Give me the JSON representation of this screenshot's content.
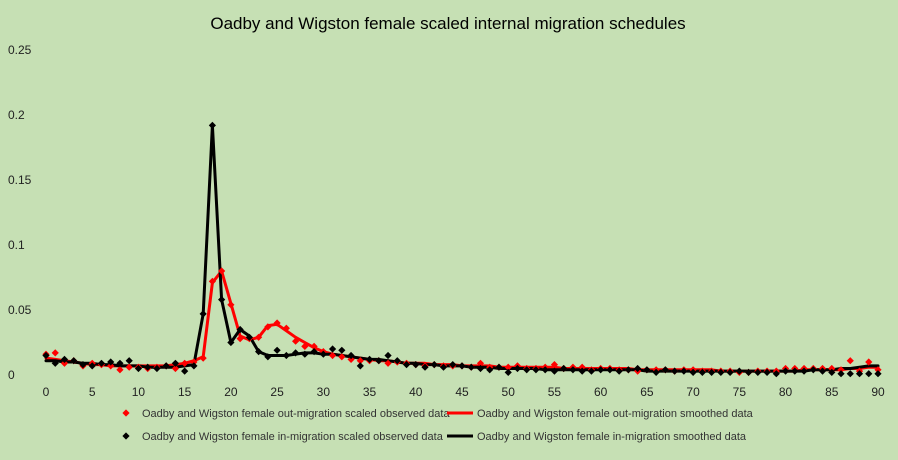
{
  "chart_data": {
    "type": "line",
    "title": "Oadby and Wigston female scaled internal migration schedules",
    "xlabel": "",
    "ylabel": "",
    "xlim": [
      0,
      90
    ],
    "ylim": [
      0,
      0.25
    ],
    "x_ticks": [
      "0",
      "5",
      "10",
      "15",
      "20",
      "25",
      "30",
      "35",
      "40",
      "45",
      "50",
      "55",
      "60",
      "65",
      "70",
      "75",
      "80",
      "85",
      "90"
    ],
    "y_ticks": [
      "0",
      "0.05",
      "0.1",
      "0.15",
      "0.2",
      "0.25"
    ],
    "grid": false,
    "legend_position": "bottom",
    "colors": {
      "background": "#c6e0b4",
      "out": "#ff0000",
      "in": "#000000"
    },
    "series": [
      {
        "name": "Oadby and Wigston female out-migration scaled observed data",
        "kind": "scatter",
        "color": "#ff0000",
        "x": [
          0,
          1,
          2,
          3,
          4,
          5,
          6,
          7,
          8,
          9,
          10,
          11,
          12,
          13,
          14,
          15,
          16,
          17,
          18,
          19,
          20,
          21,
          22,
          23,
          24,
          25,
          26,
          27,
          28,
          29,
          30,
          31,
          32,
          33,
          34,
          35,
          36,
          37,
          38,
          39,
          40,
          41,
          42,
          43,
          44,
          45,
          46,
          47,
          48,
          49,
          50,
          51,
          52,
          53,
          54,
          55,
          56,
          57,
          58,
          59,
          60,
          61,
          62,
          63,
          64,
          65,
          66,
          67,
          68,
          69,
          70,
          71,
          72,
          73,
          74,
          75,
          76,
          77,
          78,
          79,
          80,
          81,
          82,
          83,
          84,
          85,
          86,
          87,
          88,
          89,
          90
        ],
        "values": [
          0.016,
          0.017,
          0.009,
          0.011,
          0.007,
          0.009,
          0.008,
          0.007,
          0.004,
          0.006,
          0.006,
          0.005,
          0.006,
          0.007,
          0.005,
          0.009,
          0.01,
          0.013,
          0.072,
          0.08,
          0.054,
          0.028,
          0.028,
          0.029,
          0.037,
          0.04,
          0.036,
          0.026,
          0.022,
          0.022,
          0.018,
          0.015,
          0.014,
          0.012,
          0.011,
          0.011,
          0.011,
          0.009,
          0.01,
          0.009,
          0.008,
          0.007,
          0.008,
          0.007,
          0.007,
          0.007,
          0.006,
          0.009,
          0.006,
          0.006,
          0.006,
          0.007,
          0.005,
          0.005,
          0.006,
          0.008,
          0.005,
          0.006,
          0.006,
          0.004,
          0.005,
          0.005,
          0.004,
          0.004,
          0.003,
          0.004,
          0.004,
          0.004,
          0.003,
          0.004,
          0.004,
          0.003,
          0.003,
          0.003,
          0.003,
          0.002,
          0.002,
          0.003,
          0.003,
          0.003,
          0.005,
          0.005,
          0.005,
          0.005,
          0.005,
          0.005,
          0.004,
          0.011,
          0.003,
          0.01,
          0.004
        ]
      },
      {
        "name": "Oadby and Wigston female out-migration smoothed data",
        "kind": "line",
        "color": "#ff0000",
        "x": [
          0,
          1,
          2,
          3,
          4,
          5,
          6,
          7,
          8,
          9,
          10,
          11,
          12,
          13,
          14,
          15,
          16,
          17,
          18,
          19,
          20,
          21,
          22,
          23,
          24,
          25,
          26,
          27,
          28,
          29,
          30,
          31,
          32,
          33,
          34,
          35,
          36,
          37,
          38,
          39,
          40,
          41,
          42,
          43,
          44,
          45,
          46,
          47,
          48,
          49,
          50,
          51,
          52,
          53,
          54,
          55,
          56,
          57,
          58,
          59,
          60,
          61,
          62,
          63,
          64,
          65,
          66,
          67,
          68,
          69,
          70,
          71,
          72,
          73,
          74,
          75,
          76,
          77,
          78,
          79,
          80,
          81,
          82,
          83,
          84,
          85,
          86,
          87,
          88,
          89,
          90
        ],
        "values": [
          0.013,
          0.012,
          0.011,
          0.01,
          0.009,
          0.008,
          0.008,
          0.007,
          0.007,
          0.007,
          0.007,
          0.007,
          0.007,
          0.007,
          0.008,
          0.009,
          0.011,
          0.014,
          0.071,
          0.08,
          0.055,
          0.03,
          0.027,
          0.029,
          0.038,
          0.039,
          0.034,
          0.029,
          0.025,
          0.021,
          0.018,
          0.016,
          0.015,
          0.014,
          0.013,
          0.012,
          0.011,
          0.011,
          0.01,
          0.009,
          0.009,
          0.009,
          0.008,
          0.008,
          0.008,
          0.007,
          0.007,
          0.007,
          0.007,
          0.006,
          0.006,
          0.006,
          0.006,
          0.006,
          0.006,
          0.006,
          0.005,
          0.005,
          0.005,
          0.005,
          0.005,
          0.005,
          0.005,
          0.005,
          0.004,
          0.004,
          0.004,
          0.004,
          0.004,
          0.004,
          0.004,
          0.004,
          0.004,
          0.003,
          0.003,
          0.003,
          0.003,
          0.003,
          0.003,
          0.003,
          0.003,
          0.003,
          0.004,
          0.004,
          0.004,
          0.004,
          0.004,
          0.005,
          0.005,
          0.006,
          0.006
        ]
      },
      {
        "name": "Oadby and Wigston female in-migration scaled observed data",
        "kind": "scatter",
        "color": "#000000",
        "x": [
          0,
          1,
          2,
          3,
          4,
          5,
          6,
          7,
          8,
          9,
          10,
          11,
          12,
          13,
          14,
          15,
          16,
          17,
          18,
          19,
          20,
          21,
          22,
          23,
          24,
          25,
          26,
          27,
          28,
          29,
          30,
          31,
          32,
          33,
          34,
          35,
          36,
          37,
          38,
          39,
          40,
          41,
          42,
          43,
          44,
          45,
          46,
          47,
          48,
          49,
          50,
          51,
          52,
          53,
          54,
          55,
          56,
          57,
          58,
          59,
          60,
          61,
          62,
          63,
          64,
          65,
          66,
          67,
          68,
          69,
          70,
          71,
          72,
          73,
          74,
          75,
          76,
          77,
          78,
          79,
          80,
          81,
          82,
          83,
          84,
          85,
          86,
          87,
          88,
          89,
          90
        ],
        "values": [
          0.015,
          0.009,
          0.012,
          0.011,
          0.008,
          0.007,
          0.009,
          0.01,
          0.009,
          0.011,
          0.005,
          0.006,
          0.005,
          0.007,
          0.009,
          0.003,
          0.007,
          0.047,
          0.192,
          0.058,
          0.025,
          0.035,
          0.029,
          0.018,
          0.014,
          0.019,
          0.015,
          0.017,
          0.016,
          0.018,
          0.016,
          0.02,
          0.019,
          0.015,
          0.007,
          0.012,
          0.011,
          0.015,
          0.011,
          0.008,
          0.008,
          0.006,
          0.008,
          0.006,
          0.008,
          0.007,
          0.006,
          0.005,
          0.004,
          0.006,
          0.002,
          0.005,
          0.004,
          0.004,
          0.004,
          0.003,
          0.005,
          0.004,
          0.003,
          0.003,
          0.004,
          0.004,
          0.003,
          0.004,
          0.005,
          0.004,
          0.002,
          0.004,
          0.003,
          0.003,
          0.002,
          0.002,
          0.002,
          0.002,
          0.002,
          0.003,
          0.002,
          0.002,
          0.002,
          0.001,
          0.003,
          0.003,
          0.003,
          0.004,
          0.003,
          0.002,
          0.001,
          0.001,
          0.001,
          0.001,
          0.001
        ]
      },
      {
        "name": "Oadby and Wigston female in-migration smoothed data",
        "kind": "line",
        "color": "#000000",
        "x": [
          0,
          1,
          2,
          3,
          4,
          5,
          6,
          7,
          8,
          9,
          10,
          11,
          12,
          13,
          14,
          15,
          16,
          17,
          18,
          19,
          20,
          21,
          22,
          23,
          24,
          25,
          26,
          27,
          28,
          29,
          30,
          31,
          32,
          33,
          34,
          35,
          36,
          37,
          38,
          39,
          40,
          41,
          42,
          43,
          44,
          45,
          46,
          47,
          48,
          49,
          50,
          51,
          52,
          53,
          54,
          55,
          56,
          57,
          58,
          59,
          60,
          61,
          62,
          63,
          64,
          65,
          66,
          67,
          68,
          69,
          70,
          71,
          72,
          73,
          74,
          75,
          76,
          77,
          78,
          79,
          80,
          81,
          82,
          83,
          84,
          85,
          86,
          87,
          88,
          89,
          90
        ],
        "values": [
          0.011,
          0.011,
          0.01,
          0.01,
          0.009,
          0.009,
          0.008,
          0.008,
          0.007,
          0.007,
          0.007,
          0.006,
          0.006,
          0.006,
          0.006,
          0.007,
          0.008,
          0.047,
          0.192,
          0.058,
          0.025,
          0.035,
          0.03,
          0.018,
          0.015,
          0.015,
          0.015,
          0.016,
          0.017,
          0.017,
          0.016,
          0.016,
          0.015,
          0.014,
          0.013,
          0.012,
          0.012,
          0.011,
          0.01,
          0.009,
          0.009,
          0.008,
          0.008,
          0.007,
          0.007,
          0.007,
          0.006,
          0.006,
          0.006,
          0.005,
          0.005,
          0.005,
          0.005,
          0.005,
          0.004,
          0.004,
          0.004,
          0.004,
          0.004,
          0.004,
          0.004,
          0.004,
          0.004,
          0.004,
          0.004,
          0.003,
          0.003,
          0.003,
          0.003,
          0.003,
          0.003,
          0.003,
          0.003,
          0.003,
          0.003,
          0.003,
          0.003,
          0.003,
          0.003,
          0.003,
          0.003,
          0.003,
          0.003,
          0.004,
          0.004,
          0.004,
          0.005,
          0.005,
          0.006,
          0.007,
          0.007
        ]
      }
    ]
  }
}
